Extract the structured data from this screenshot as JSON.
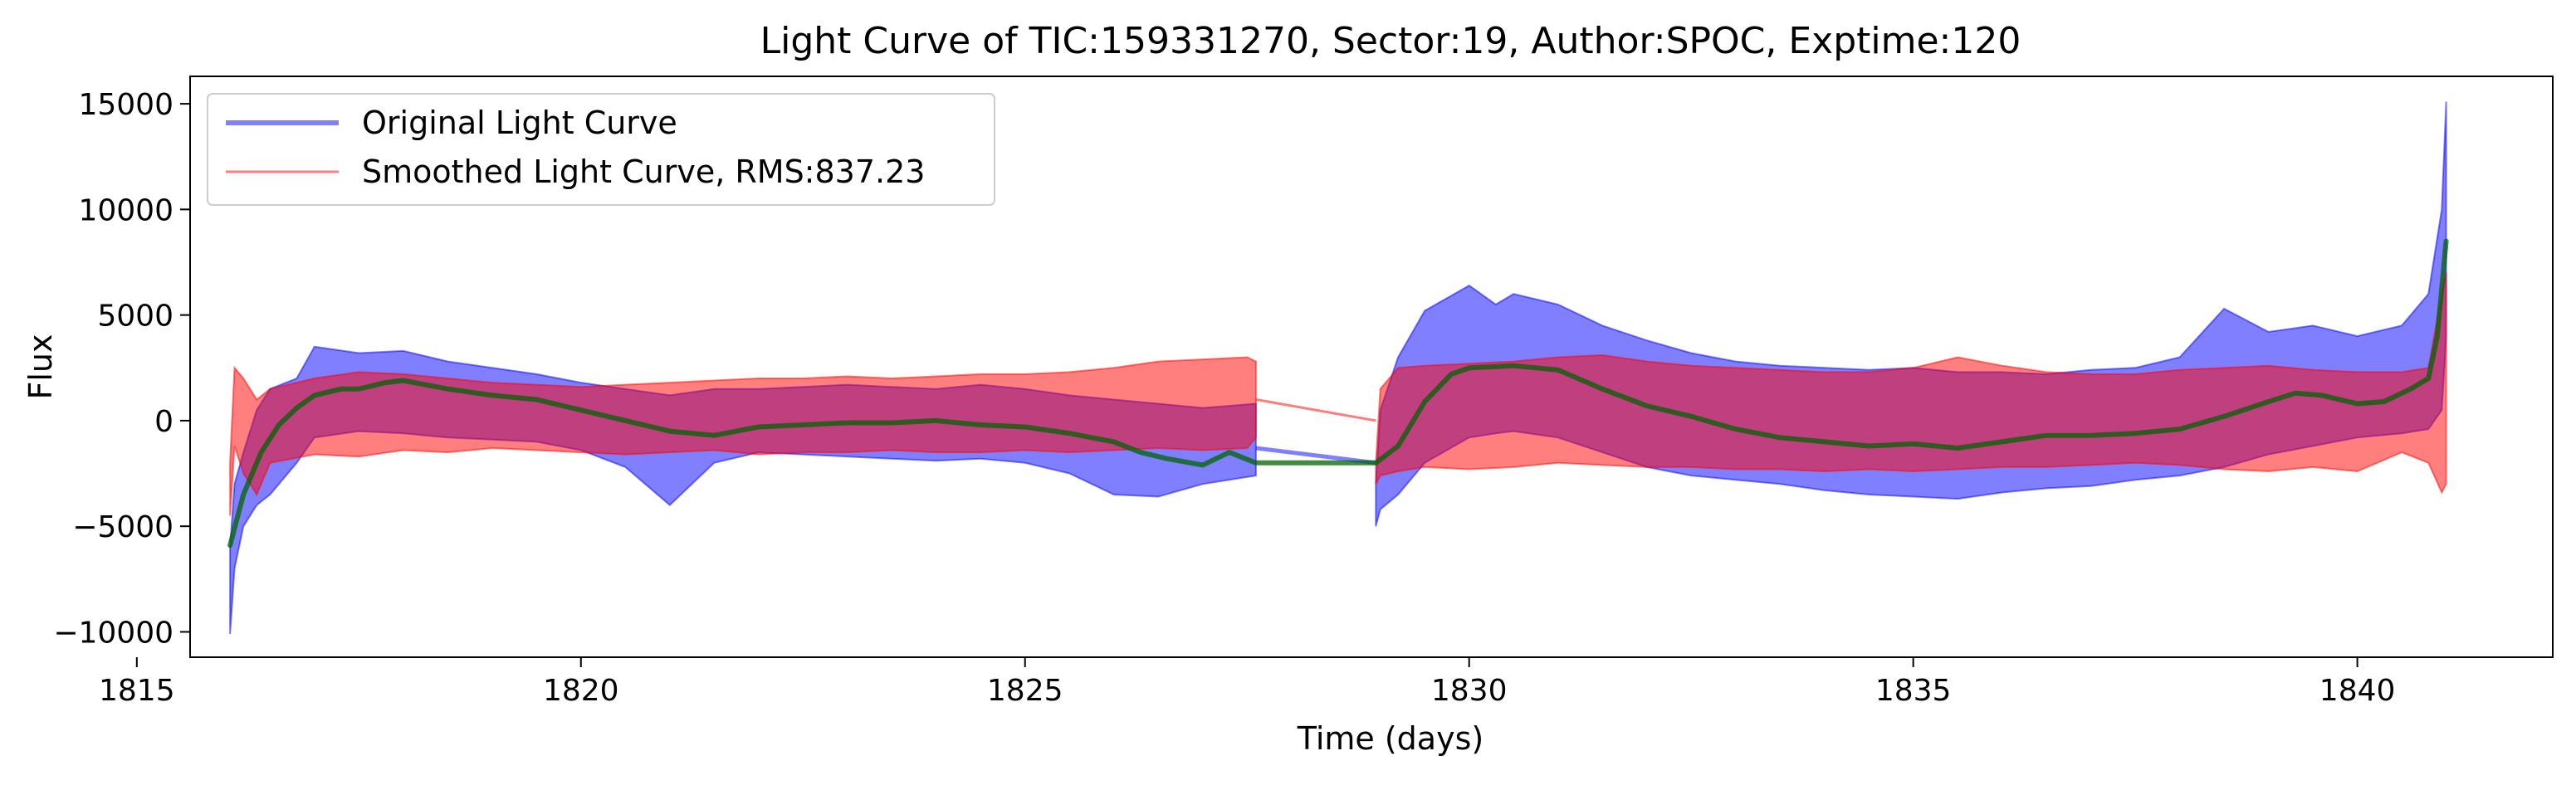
{
  "chart_data": {
    "type": "line",
    "title": "Light Curve of TIC:159331270, Sector:19, Author:SPOC, Exptime:120",
    "xlabel": "Time (days)",
    "ylabel": "Flux",
    "xlim": [
      1815.6,
      1842.2
    ],
    "ylim": [
      -11200,
      16300
    ],
    "xticks": [
      1815,
      1820,
      1825,
      1830,
      1835,
      1840
    ],
    "xtick_labels": [
      "1815",
      "1820",
      "1825",
      "1830",
      "1835",
      "1840"
    ],
    "yticks": [
      -10000,
      -5000,
      0,
      5000,
      10000,
      15000
    ],
    "ytick_labels": [
      "−10000",
      "−5000",
      "0",
      "5000",
      "10000",
      "15000"
    ],
    "grid": false,
    "legend": {
      "placement": "top-left",
      "entries": [
        {
          "series": "original",
          "label": "Original Light Curve"
        },
        {
          "series": "smoothed",
          "label": "Smoothed Light Curve, RMS:837.23"
        }
      ]
    },
    "series": [
      {
        "name": "Original Light Curve",
        "key": "original",
        "color": "#0000ff",
        "alpha": 0.5,
        "band": {
          "x": [
            1816.05,
            1816.1,
            1816.2,
            1816.35,
            1816.5,
            1816.8,
            1817.0,
            1817.5,
            1818.0,
            1818.5,
            1819.0,
            1819.5,
            1820.0,
            1820.5,
            1821.0,
            1821.5,
            1822.0,
            1822.5,
            1823.0,
            1823.5,
            1824.0,
            1824.5,
            1825.0,
            1825.5,
            1826.0,
            1826.5,
            1827.0,
            1827.6
          ],
          "upper": [
            -6000,
            -3000,
            -1500,
            500,
            1500,
            2000,
            3500,
            3200,
            3300,
            2800,
            2500,
            2200,
            1800,
            1500,
            1200,
            1500,
            1500,
            1600,
            1700,
            1600,
            1500,
            1700,
            1500,
            1200,
            1000,
            800,
            600,
            800
          ],
          "lower": [
            -10100,
            -7000,
            -5000,
            -4000,
            -3500,
            -2000,
            -800,
            -500,
            -600,
            -800,
            -900,
            -1000,
            -1400,
            -2200,
            -4000,
            -2000,
            -1500,
            -1600,
            -1700,
            -1800,
            -1900,
            -1800,
            -2000,
            -2500,
            -3500,
            -3600,
            -3000,
            -2600
          ]
        },
        "band2": {
          "x": [
            1828.95,
            1829.0,
            1829.2,
            1829.5,
            1830.0,
            1830.3,
            1830.5,
            1831.0,
            1831.5,
            1832.0,
            1832.5,
            1833.0,
            1833.5,
            1834.0,
            1834.5,
            1835.0,
            1835.5,
            1836.0,
            1836.5,
            1837.0,
            1837.5,
            1838.0,
            1838.5,
            1839.0,
            1839.5,
            1840.0,
            1840.5,
            1840.8,
            1840.95,
            1841.0
          ],
          "upper": [
            -3000,
            500,
            3000,
            5200,
            6400,
            5500,
            6000,
            5500,
            4500,
            3800,
            3200,
            2800,
            2600,
            2500,
            2400,
            2500,
            2300,
            2300,
            2200,
            2400,
            2500,
            3000,
            5300,
            4200,
            4500,
            4000,
            4500,
            6000,
            10000,
            15100
          ],
          "lower": [
            -5000,
            -4200,
            -3500,
            -2000,
            -800,
            -600,
            -500,
            -800,
            -1500,
            -2200,
            -2600,
            -2800,
            -3000,
            -3300,
            -3500,
            -3600,
            -3700,
            -3400,
            -3200,
            -3100,
            -2800,
            -2600,
            -2200,
            -1600,
            -1200,
            -800,
            -600,
            -400,
            500,
            4000
          ]
        },
        "gap_line": {
          "x": [
            1827.6,
            1828.95
          ],
          "y": [
            -1300,
            -2000
          ]
        }
      },
      {
        "name": "Smoothed Light Curve, RMS:837.23",
        "key": "smoothed",
        "color": "#ff0000",
        "alpha": 0.5,
        "band": {
          "x": [
            1816.05,
            1816.1,
            1816.2,
            1816.35,
            1816.5,
            1817.0,
            1817.5,
            1818.0,
            1818.5,
            1819.0,
            1819.5,
            1820.0,
            1820.5,
            1821.0,
            1821.5,
            1822.0,
            1822.5,
            1823.0,
            1823.5,
            1824.0,
            1824.5,
            1825.0,
            1825.5,
            1826.0,
            1826.5,
            1827.0,
            1827.5,
            1827.6
          ],
          "upper": [
            -2000,
            2500,
            2000,
            1000,
            1500,
            2000,
            2300,
            2200,
            2000,
            1800,
            1700,
            1600,
            1700,
            1800,
            1900,
            2000,
            2000,
            2100,
            2000,
            2100,
            2200,
            2200,
            2300,
            2500,
            2800,
            2900,
            3000,
            2800
          ],
          "lower": [
            -4500,
            -1200,
            -2500,
            -3500,
            -2000,
            -1600,
            -1700,
            -1400,
            -1500,
            -1300,
            -1400,
            -1500,
            -1600,
            -1500,
            -1400,
            -1600,
            -1500,
            -1500,
            -1400,
            -1500,
            -1500,
            -1400,
            -1500,
            -1400,
            -1300,
            -1400,
            -1300,
            -800
          ]
        },
        "band2": {
          "x": [
            1828.95,
            1829.0,
            1829.2,
            1829.5,
            1830.0,
            1830.5,
            1831.0,
            1831.5,
            1832.0,
            1832.5,
            1833.0,
            1833.5,
            1834.0,
            1834.5,
            1835.0,
            1835.5,
            1836.0,
            1836.5,
            1837.0,
            1837.5,
            1838.0,
            1838.5,
            1839.0,
            1839.5,
            1840.0,
            1840.5,
            1840.8,
            1840.95,
            1841.0
          ],
          "upper": [
            -2000,
            1500,
            2500,
            2600,
            2700,
            2800,
            3000,
            3100,
            2800,
            2600,
            2500,
            2400,
            2300,
            2300,
            2500,
            3000,
            2600,
            2300,
            2200,
            2200,
            2400,
            2500,
            2600,
            2400,
            2300,
            2300,
            2500,
            6000,
            7000
          ],
          "lower": [
            -3000,
            -2600,
            -2400,
            -2200,
            -2300,
            -2200,
            -2000,
            -2100,
            -2200,
            -2200,
            -2300,
            -2300,
            -2400,
            -2300,
            -2400,
            -2300,
            -2200,
            -2200,
            -2100,
            -2000,
            -2100,
            -2300,
            -2400,
            -2200,
            -2400,
            -1500,
            -2000,
            -3400,
            -3000
          ]
        },
        "gap_line": {
          "x": [
            1827.6,
            1828.95
          ],
          "y": [
            1000,
            0
          ]
        }
      },
      {
        "key": "trend",
        "color": "#006400",
        "alpha": 0.75,
        "x": [
          1816.05,
          1816.2,
          1816.4,
          1816.6,
          1816.8,
          1817.0,
          1817.3,
          1817.5,
          1817.8,
          1818.0,
          1818.5,
          1819.0,
          1819.5,
          1820.0,
          1820.5,
          1821.0,
          1821.5,
          1822.0,
          1822.5,
          1823.0,
          1823.5,
          1824.0,
          1824.5,
          1825.0,
          1825.5,
          1826.0,
          1826.3,
          1826.6,
          1827.0,
          1827.3,
          1827.6,
          1828.0,
          1828.5,
          1828.95,
          1829.2,
          1829.5,
          1829.8,
          1830.0,
          1830.5,
          1831.0,
          1831.5,
          1832.0,
          1832.5,
          1833.0,
          1833.5,
          1834.0,
          1834.5,
          1835.0,
          1835.5,
          1836.0,
          1836.5,
          1837.0,
          1837.5,
          1838.0,
          1838.5,
          1839.0,
          1839.3,
          1839.6,
          1840.0,
          1840.3,
          1840.6,
          1840.8,
          1840.9,
          1841.0
        ],
        "y": [
          -5900,
          -3500,
          -1500,
          -200,
          600,
          1200,
          1500,
          1500,
          1800,
          1900,
          1500,
          1200,
          1000,
          500,
          0,
          -500,
          -700,
          -300,
          -200,
          -100,
          -100,
          0,
          -200,
          -300,
          -600,
          -1000,
          -1500,
          -1800,
          -2100,
          -1500,
          -2000,
          -2000,
          -2000,
          -2000,
          -1200,
          900,
          2200,
          2500,
          2600,
          2400,
          1500,
          700,
          200,
          -400,
          -800,
          -1000,
          -1200,
          -1100,
          -1300,
          -1000,
          -700,
          -700,
          -600,
          -400,
          200,
          900,
          1300,
          1200,
          800,
          900,
          1500,
          2000,
          4000,
          8500
        ]
      }
    ]
  }
}
